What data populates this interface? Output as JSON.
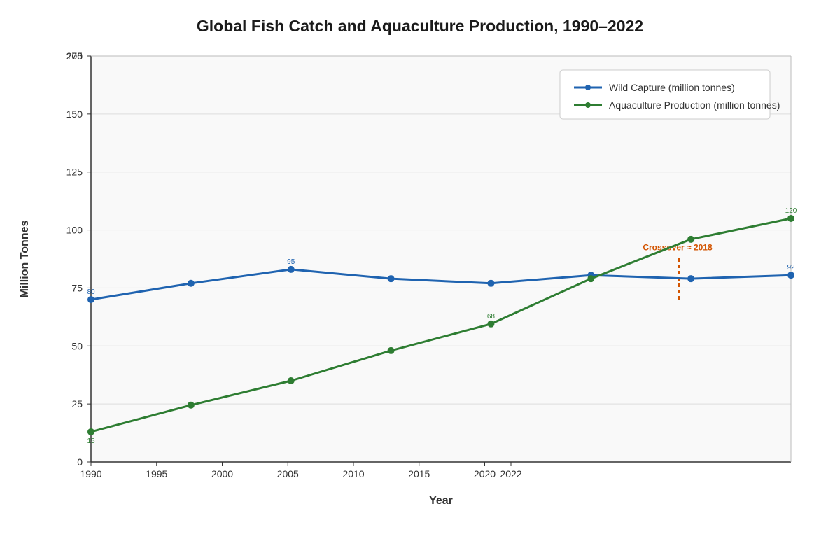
{
  "chart_data": {
    "type": "line",
    "title": "Global Fish Catch and Aquaculture Production, 1990–2022",
    "xlabel": "Year",
    "ylabel": "Million Tonnes",
    "y_ticks": [
      "0",
      "25",
      "50",
      "75",
      "100",
      "125",
      "150",
      "175",
      "200"
    ],
    "x_ticks": [
      "1990",
      "1995",
      "2000",
      "2005",
      "2010",
      "2015",
      "2020",
      "2022"
    ],
    "ylim": [
      0,
      175
    ],
    "grid": true,
    "legend_position": "top-right",
    "series": [
      {
        "name": "Wild Capture (million tonnes)",
        "color": "#1f63b0",
        "values": [
          70,
          77,
          83,
          79,
          77,
          80.5,
          79,
          80.5
        ],
        "data_labels": [
          "80",
          "",
          "95",
          "",
          "",
          "",
          "",
          "92"
        ]
      },
      {
        "name": "Aquaculture Production (million tonnes)",
        "color": "#2e7d32",
        "values": [
          13,
          24.5,
          35,
          48,
          59.5,
          79,
          96,
          105
        ],
        "data_labels": [
          "15",
          "",
          "",
          "",
          "68",
          "",
          "",
          "120"
        ]
      }
    ],
    "annotation": {
      "text": "Crossover ≈ 2018",
      "color": "#d35400",
      "y_from": 70,
      "y_to": 88
    }
  }
}
